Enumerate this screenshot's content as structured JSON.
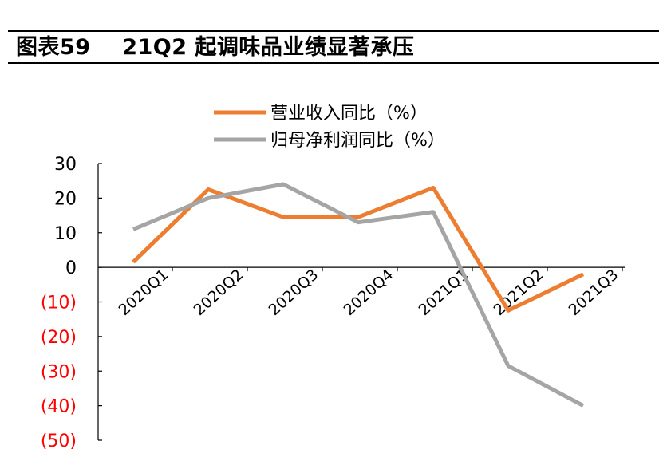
{
  "figure": {
    "label": "图表59",
    "title": "21Q2 起调味品业绩显著承压"
  },
  "colors": {
    "revenue": "#ed7d31",
    "net_profit": "#a5a5a5",
    "negative_tick": "#ff0000",
    "axis": "#000000"
  },
  "chart_data": {
    "type": "line",
    "categories": [
      "2020Q1",
      "2020Q2",
      "2020Q3",
      "2020Q4",
      "2021Q1",
      "2021Q2",
      "2021Q3"
    ],
    "series": [
      {
        "name": "营业收入同比（%）",
        "values": [
          1.5,
          22.5,
          14.5,
          14.5,
          23,
          -12.5,
          -2
        ]
      },
      {
        "name": "归母净利润同比（%）",
        "values": [
          11,
          20,
          24,
          13,
          16,
          -28.5,
          -40
        ]
      }
    ],
    "ylim": [
      -50,
      30
    ],
    "yticks": [
      30,
      20,
      10,
      0,
      -10,
      -20,
      -30,
      -40,
      -50
    ],
    "ytick_labels": [
      "30",
      "20",
      "10",
      "0",
      "(10)",
      "(20)",
      "(30)",
      "(40)",
      "(50)"
    ],
    "xlabel": "",
    "ylabel": "",
    "legend_position": "top-center",
    "grid": false
  }
}
